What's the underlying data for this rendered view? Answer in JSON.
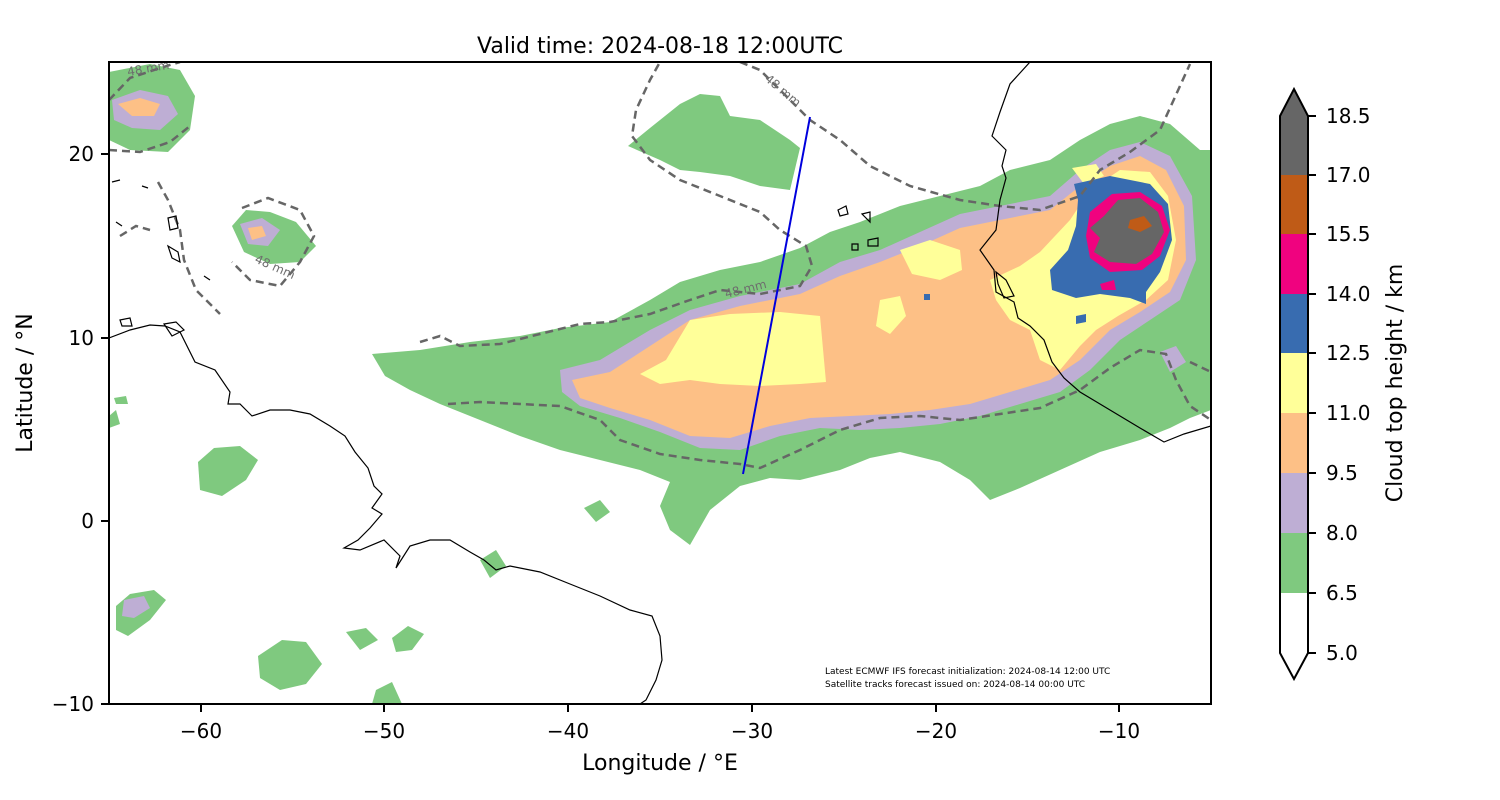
{
  "title": "Valid time: 2024-08-18 12:00UTC",
  "x_axis": {
    "label": "Longitude / °E",
    "ticks": [
      -60,
      -50,
      -40,
      -30,
      -20,
      -10
    ],
    "tick_labels": [
      "−60",
      "−50",
      "−40",
      "−30",
      "−20",
      "−10"
    ],
    "range": [
      -65,
      -5
    ]
  },
  "y_axis": {
    "label": "Latitude / °N",
    "ticks": [
      -10,
      0,
      10,
      20
    ],
    "tick_labels": [
      "−10",
      "0",
      "10",
      "20"
    ],
    "range": [
      -10,
      25
    ]
  },
  "colorbar": {
    "label": "Cloud top height / km",
    "tick_labels": [
      "5.0",
      "6.5",
      "8.0",
      "9.5",
      "11.0",
      "12.5",
      "14.0",
      "15.5",
      "17.0",
      "18.5"
    ],
    "colors": [
      "#ffffff",
      "#7fc97f",
      "#beaed4",
      "#fdc086",
      "#ffff99",
      "#386cb0",
      "#f0027f",
      "#bf5b17",
      "#666666"
    ],
    "extend": "both"
  },
  "contour": {
    "label": "48 mm",
    "color": "#666666",
    "style": "dashed"
  },
  "satellite_track": {
    "color": "#0000dd",
    "start": [
      -30.5,
      2.6
    ],
    "end": [
      -26.9,
      22.0
    ]
  },
  "notes": [
    "Latest ECMWF IFS forecast initialization: 2024-08-14 12:00 UTC",
    "Satellite tracks forecast issued on: 2024-08-14 00:00 UTC"
  ]
}
